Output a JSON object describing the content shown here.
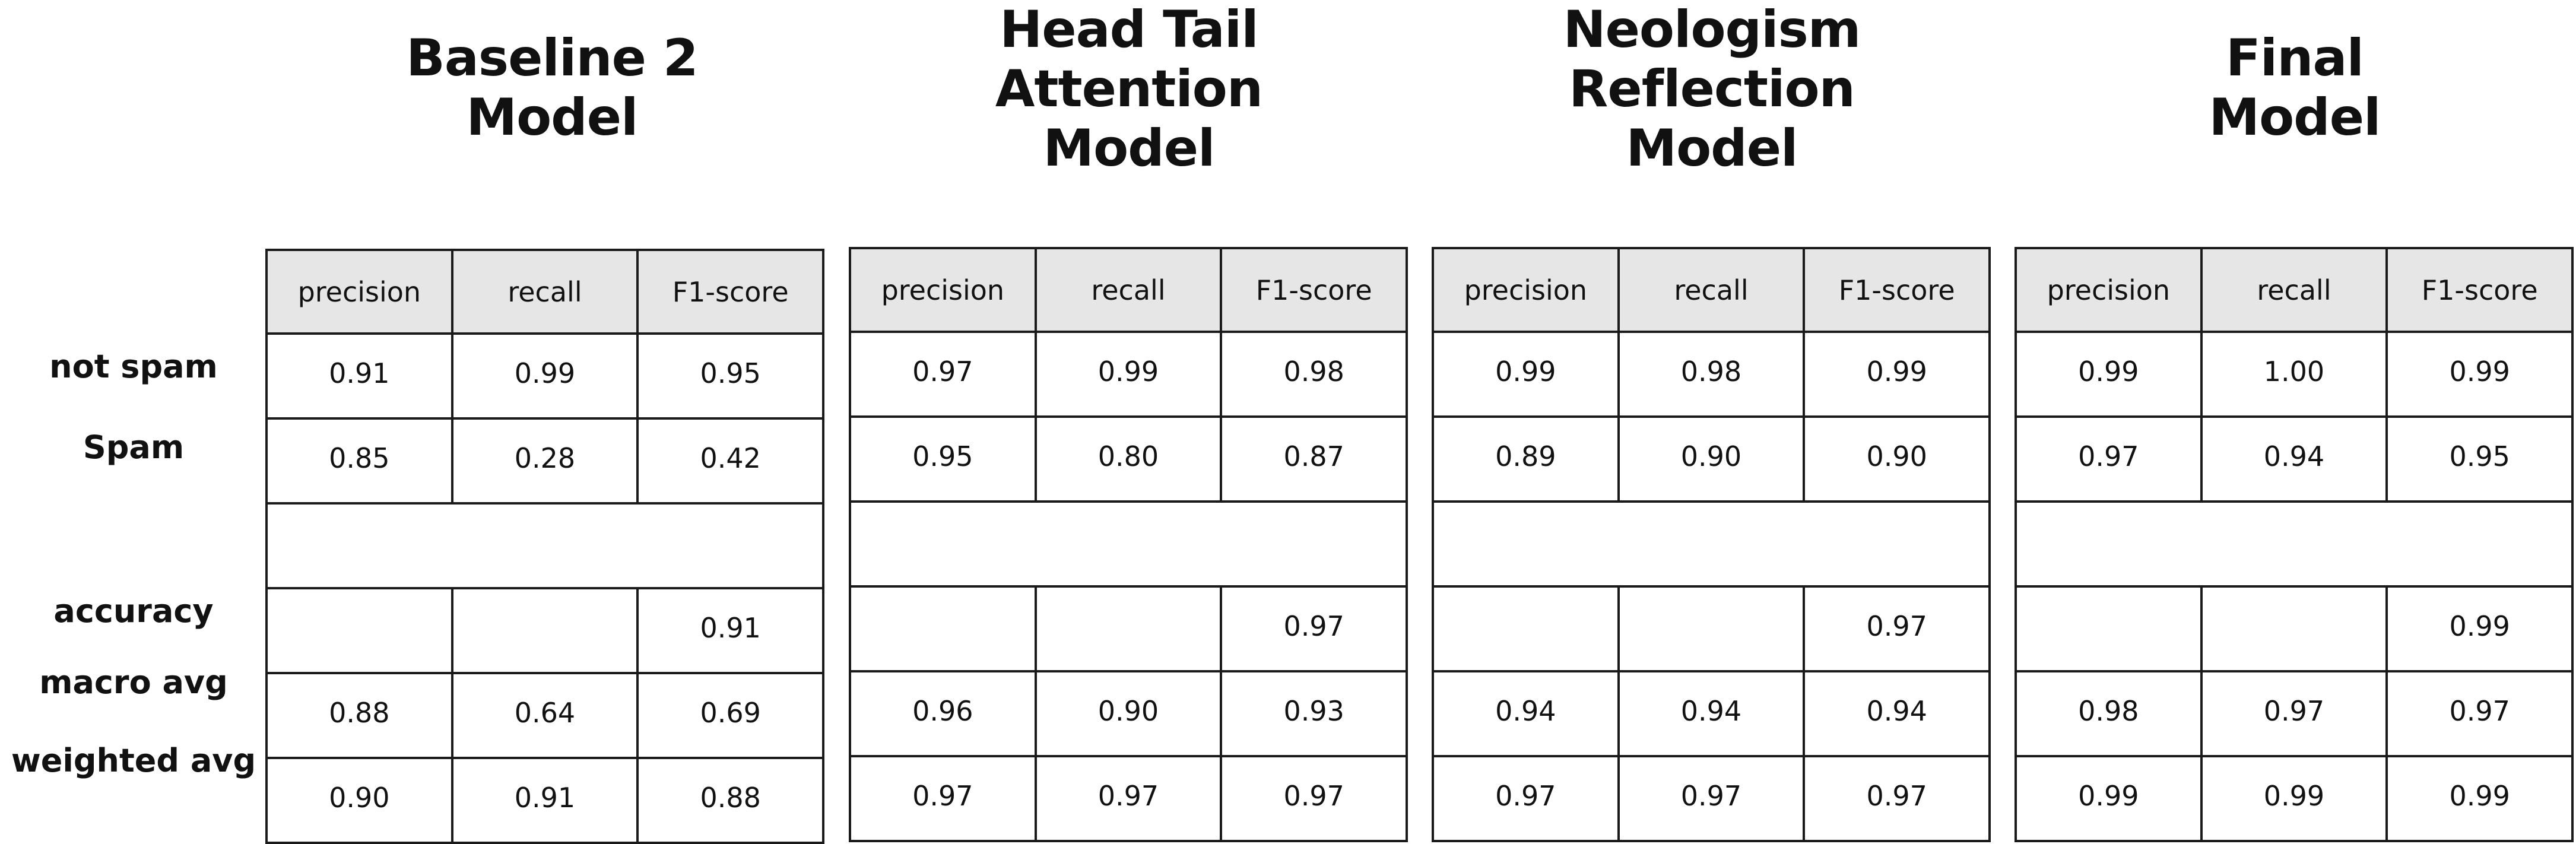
{
  "columns": [
    "precision",
    "recall",
    "F1-score"
  ],
  "row_labels": [
    "not spam",
    "Spam",
    "accuracy",
    "macro avg",
    "weighted avg"
  ],
  "models": [
    {
      "title": "Baseline 2\nModel",
      "rows": [
        [
          "0.91",
          "0.99",
          "0.95"
        ],
        [
          "0.85",
          "0.28",
          "0.42"
        ],
        [
          "",
          "",
          "0.91"
        ],
        [
          "0.88",
          "0.64",
          "0.69"
        ],
        [
          "0.90",
          "0.91",
          "0.88"
        ]
      ]
    },
    {
      "title": "Head Tail\nAttention\nModel",
      "rows": [
        [
          "0.97",
          "0.99",
          "0.98"
        ],
        [
          "0.95",
          "0.80",
          "0.87"
        ],
        [
          "",
          "",
          "0.97"
        ],
        [
          "0.96",
          "0.90",
          "0.93"
        ],
        [
          "0.97",
          "0.97",
          "0.97"
        ]
      ]
    },
    {
      "title": "Neologism\nReflection\nModel",
      "rows": [
        [
          "0.99",
          "0.98",
          "0.99"
        ],
        [
          "0.89",
          "0.90",
          "0.90"
        ],
        [
          "",
          "",
          "0.97"
        ],
        [
          "0.94",
          "0.94",
          "0.94"
        ],
        [
          "0.97",
          "0.97",
          "0.97"
        ]
      ]
    },
    {
      "title": "Final\nModel",
      "rows": [
        [
          "0.99",
          "1.00",
          "0.99"
        ],
        [
          "0.97",
          "0.94",
          "0.95"
        ],
        [
          "",
          "",
          "0.99"
        ],
        [
          "0.98",
          "0.97",
          "0.97"
        ],
        [
          "0.99",
          "0.99",
          "0.99"
        ]
      ]
    }
  ]
}
